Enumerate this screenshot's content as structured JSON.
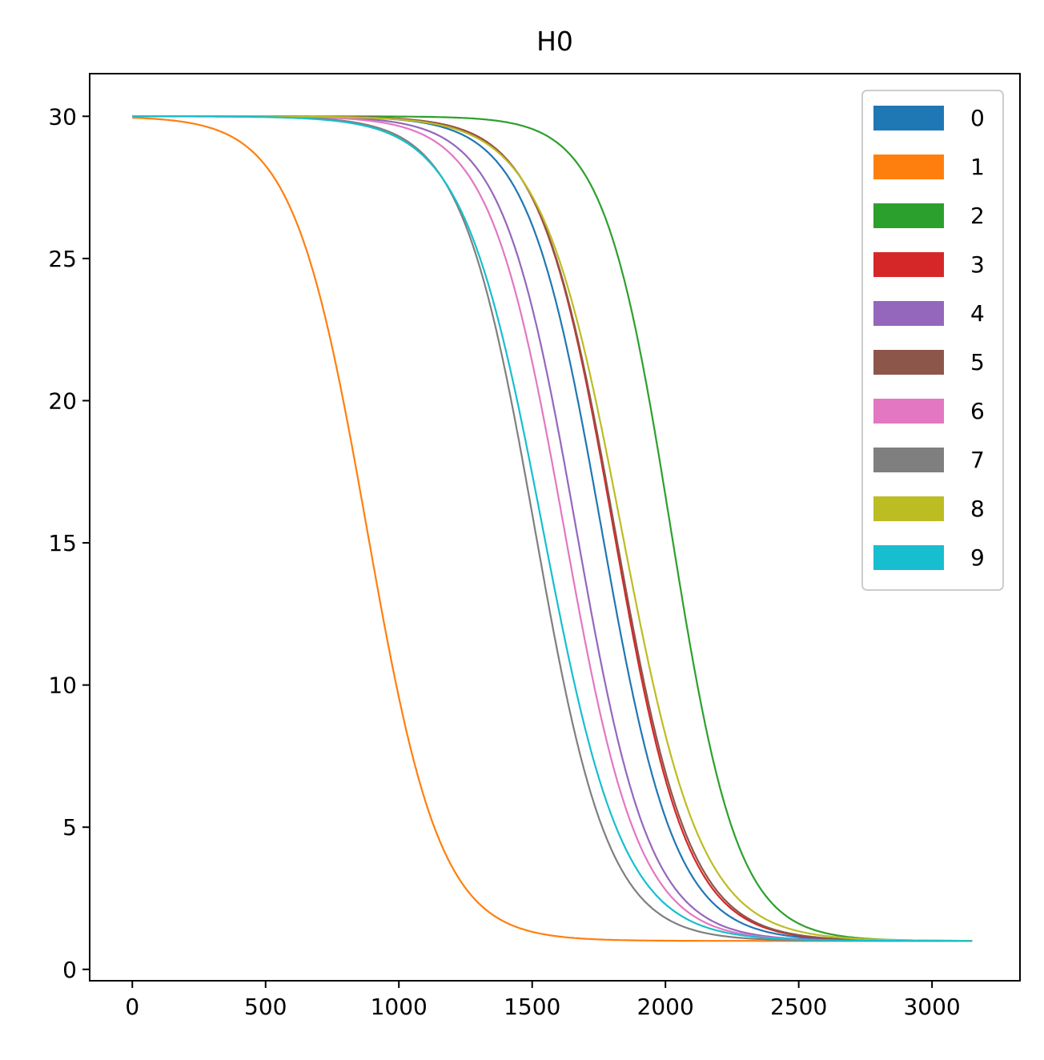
{
  "chart_data": {
    "type": "line",
    "title": "H0",
    "xlabel": "",
    "ylabel": "",
    "xlim": [
      -160,
      3330
    ],
    "ylim": [
      -0.4,
      31.5
    ],
    "xticks": [
      0,
      500,
      1000,
      1500,
      2000,
      2500,
      3000
    ],
    "yticks": [
      0,
      5,
      10,
      15,
      20,
      25,
      30
    ],
    "xtick_labels": [
      "0",
      "500",
      "1000",
      "1500",
      "2000",
      "2500",
      "3000"
    ],
    "ytick_labels": [
      "0",
      "5",
      "10",
      "15",
      "20",
      "25",
      "30"
    ],
    "grid": false,
    "legend_position": "top-right",
    "x_max": 3150,
    "series": [
      {
        "name": "0",
        "color": "#1f77b4",
        "mid": 1760,
        "width": 138
      },
      {
        "name": "1",
        "color": "#ff7f0e",
        "mid": 880,
        "width": 138
      },
      {
        "name": "2",
        "color": "#2ca02c",
        "mid": 2020,
        "width": 125
      },
      {
        "name": "3",
        "color": "#d62728",
        "mid": 1805,
        "width": 138
      },
      {
        "name": "4",
        "color": "#9467bd",
        "mid": 1665,
        "width": 138
      },
      {
        "name": "5",
        "color": "#8c564b",
        "mid": 1810,
        "width": 140
      },
      {
        "name": "6",
        "color": "#e377c2",
        "mid": 1620,
        "width": 140
      },
      {
        "name": "7",
        "color": "#7f7f7f",
        "mid": 1510,
        "width": 138
      },
      {
        "name": "8",
        "color": "#bcbd22",
        "mid": 1835,
        "width": 150
      },
      {
        "name": "9",
        "color": "#17becf",
        "mid": 1540,
        "width": 150
      }
    ],
    "y_start": 30,
    "y_end": 1
  }
}
